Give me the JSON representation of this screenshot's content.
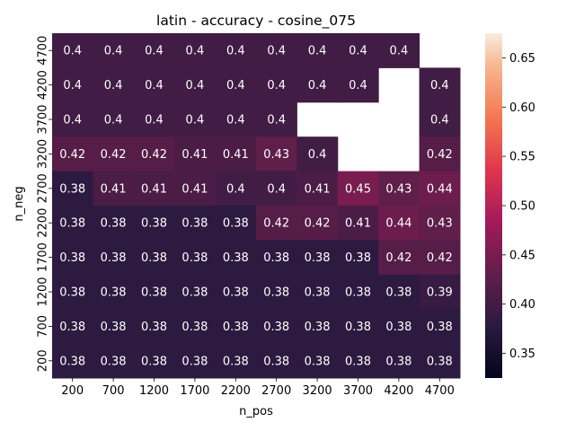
{
  "chart_data": {
    "type": "heatmap",
    "title": "latin - accuracy - cosine_075",
    "xlabel": "n_pos",
    "ylabel": "n_neg",
    "x_categories": [
      "200",
      "700",
      "1200",
      "1700",
      "2200",
      "2700",
      "3200",
      "3700",
      "4200",
      "4700"
    ],
    "y_categories": [
      "4700",
      "4200",
      "3700",
      "3200",
      "2700",
      "2200",
      "1700",
      "1200",
      "700",
      "200"
    ],
    "values": [
      [
        0.4,
        0.4,
        0.4,
        0.4,
        0.4,
        0.4,
        0.4,
        0.4,
        0.4,
        null
      ],
      [
        0.4,
        0.4,
        0.4,
        0.4,
        0.4,
        0.4,
        0.4,
        0.4,
        null,
        0.4
      ],
      [
        0.4,
        0.4,
        0.4,
        0.4,
        0.4,
        0.4,
        null,
        null,
        null,
        0.4
      ],
      [
        0.42,
        0.42,
        0.42,
        0.41,
        0.41,
        0.43,
        0.4,
        null,
        null,
        0.42
      ],
      [
        0.38,
        0.41,
        0.41,
        0.41,
        0.4,
        0.4,
        0.41,
        0.45,
        0.43,
        0.44
      ],
      [
        0.38,
        0.38,
        0.38,
        0.38,
        0.38,
        0.42,
        0.42,
        0.41,
        0.44,
        0.43
      ],
      [
        0.38,
        0.38,
        0.38,
        0.38,
        0.38,
        0.38,
        0.38,
        0.38,
        0.42,
        0.42
      ],
      [
        0.38,
        0.38,
        0.38,
        0.38,
        0.38,
        0.38,
        0.38,
        0.38,
        0.38,
        0.39
      ],
      [
        0.38,
        0.38,
        0.38,
        0.38,
        0.38,
        0.38,
        0.38,
        0.38,
        0.38,
        0.38
      ],
      [
        0.38,
        0.38,
        0.38,
        0.38,
        0.38,
        0.38,
        0.38,
        0.38,
        0.38,
        0.38
      ]
    ],
    "colorbar": {
      "vmin": 0.325,
      "vmax": 0.675,
      "ticks": [
        "0.35",
        "0.40",
        "0.45",
        "0.50",
        "0.55",
        "0.60",
        "0.65"
      ],
      "colormap": "rocket"
    },
    "grid": false,
    "legend": "colorbar-right"
  }
}
